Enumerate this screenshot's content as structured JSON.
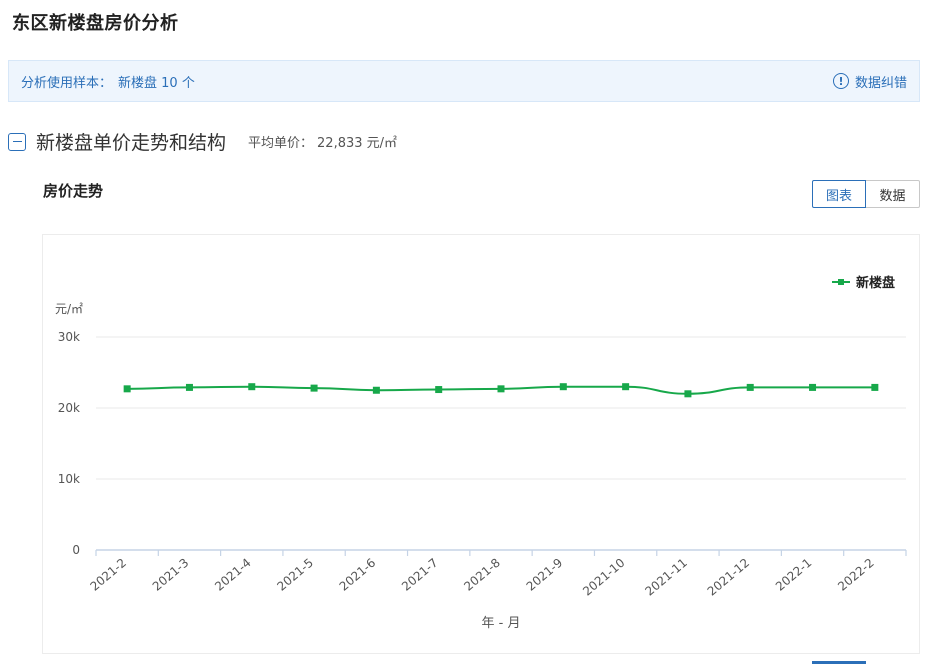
{
  "page": {
    "title": "东区新楼盘房价分析"
  },
  "sample": {
    "label": "分析使用样本：",
    "value": "新楼盘 10 个",
    "correction_label": "数据纠错",
    "correction_icon": "info-icon"
  },
  "section": {
    "title": "新楼盘单价走势和结构",
    "avg_label": "平均单价：",
    "avg_value": "22,833 元/㎡"
  },
  "subsection": {
    "title": "房价走势"
  },
  "toggle": {
    "chart_label": "图表",
    "data_label": "数据",
    "active": "chart"
  },
  "colors": {
    "accent": "#2b6fb8",
    "series": "#17a84a",
    "grid": "#e8e8e8",
    "axis": "#c5d3e6"
  },
  "chart_data": {
    "type": "line",
    "title": "",
    "xlabel": "年 - 月",
    "ylabel": "元/㎡",
    "ylim": [
      0,
      30000
    ],
    "yticks": [
      0,
      10000,
      20000,
      30000
    ],
    "ytick_labels": [
      "0",
      "10k",
      "20k",
      "30k"
    ],
    "grid": true,
    "legend_position": "top-right",
    "categories": [
      "2021-2",
      "2021-3",
      "2021-4",
      "2021-5",
      "2021-6",
      "2021-7",
      "2021-8",
      "2021-9",
      "2021-10",
      "2021-11",
      "2021-12",
      "2022-1",
      "2022-2"
    ],
    "series": [
      {
        "name": "新楼盘",
        "values": [
          22700,
          22900,
          23000,
          22800,
          22500,
          22600,
          22700,
          23000,
          23000,
          22000,
          22900,
          22900,
          22900
        ]
      }
    ]
  }
}
